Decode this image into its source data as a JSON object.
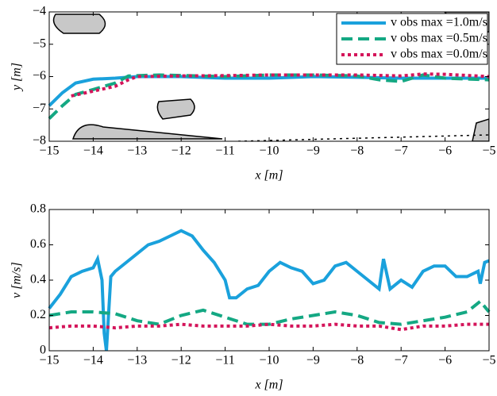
{
  "chart_data": [
    {
      "type": "line",
      "xlabel": "x [m]",
      "ylabel": "y [m]",
      "xlim": [
        -15,
        -5
      ],
      "ylim": [
        -8,
        -4
      ],
      "xticks": [
        {
          "value": -15,
          "label": "−15"
        },
        {
          "value": -14,
          "label": "−14"
        },
        {
          "value": -13,
          "label": "−13"
        },
        {
          "value": -12,
          "label": "−12"
        },
        {
          "value": -11,
          "label": "−11"
        },
        {
          "value": -10,
          "label": "−10"
        },
        {
          "value": -9,
          "label": "−9"
        },
        {
          "value": -8,
          "label": "−8"
        },
        {
          "value": -7,
          "label": "−7"
        },
        {
          "value": -6,
          "label": "−6"
        },
        {
          "value": -5,
          "label": "−5"
        }
      ],
      "yticks": [
        {
          "value": -8,
          "label": "−8"
        },
        {
          "value": -7,
          "label": "−7"
        },
        {
          "value": -6,
          "label": "−6"
        },
        {
          "value": -5,
          "label": "−5"
        },
        {
          "value": -4,
          "label": "−4"
        }
      ],
      "legend": "upper right",
      "series": [
        {
          "name": "v obs max =1.0m/s",
          "color": "#1aa1dc",
          "linestyle": "solid",
          "x": [
            -15,
            -14.7,
            -14.4,
            -14,
            -13.5,
            -13,
            -12,
            -11,
            -10,
            -9,
            -8,
            -7,
            -6,
            -5
          ],
          "values": [
            -6.9,
            -6.5,
            -6.2,
            -6.08,
            -6.05,
            -6.0,
            -6.0,
            -6.05,
            -6.05,
            -6.0,
            -6.02,
            -6.05,
            -6.05,
            -6.05
          ]
        },
        {
          "name": "v obs max =0.5m/s",
          "color": "#14a883",
          "linestyle": "dashed",
          "x": [
            -15,
            -14.7,
            -14.4,
            -14,
            -13.5,
            -13.2,
            -12.5,
            -11,
            -10,
            -9,
            -8,
            -7.5,
            -7,
            -6.5,
            -6,
            -5
          ],
          "values": [
            -7.3,
            -6.9,
            -6.55,
            -6.4,
            -6.2,
            -5.98,
            -5.95,
            -6.0,
            -5.95,
            -5.95,
            -5.98,
            -6.1,
            -6.15,
            -5.95,
            -6.05,
            -6.1
          ]
        },
        {
          "name": "v obs max =0.0m/s",
          "color": "#d4145a",
          "linestyle": "dotted",
          "x": [
            -14.5,
            -14,
            -13.5,
            -13.2,
            -13,
            -12,
            -11,
            -10,
            -9,
            -8,
            -7,
            -6.5,
            -6,
            -5
          ],
          "values": [
            -6.6,
            -6.45,
            -6.3,
            -6.1,
            -6.0,
            -5.98,
            -5.97,
            -5.95,
            -5.95,
            -5.95,
            -5.98,
            -5.92,
            -5.93,
            -6.0
          ]
        }
      ]
    },
    {
      "type": "line",
      "xlabel": "x [m]",
      "ylabel": "v [m/s]",
      "xlim": [
        -15,
        -5
      ],
      "ylim": [
        0,
        0.8
      ],
      "xticks": [
        {
          "value": -15,
          "label": "−15"
        },
        {
          "value": -14,
          "label": "−14"
        },
        {
          "value": -13,
          "label": "−13"
        },
        {
          "value": -12,
          "label": "−12"
        },
        {
          "value": -11,
          "label": "−11"
        },
        {
          "value": -10,
          "label": "−10"
        },
        {
          "value": -9,
          "label": "−9"
        },
        {
          "value": -8,
          "label": "−8"
        },
        {
          "value": -7,
          "label": "−7"
        },
        {
          "value": -6,
          "label": "−6"
        },
        {
          "value": -5,
          "label": "−5"
        }
      ],
      "yticks": [
        0,
        0.2,
        0.4,
        0.6,
        0.8
      ],
      "series": [
        {
          "color": "#1aa1dc",
          "linestyle": "solid",
          "x": [
            -15,
            -14.75,
            -14.5,
            -14.25,
            -14,
            -13.9,
            -13.8,
            -13.75,
            -13.7,
            -13.6,
            -13.5,
            -13.25,
            -13,
            -12.75,
            -12.5,
            -12.25,
            -12,
            -11.75,
            -11.5,
            -11.25,
            -11,
            -10.9,
            -10.75,
            -10.5,
            -10.25,
            -10,
            -9.75,
            -9.5,
            -9.25,
            -9,
            -8.75,
            -8.5,
            -8.25,
            -8,
            -7.75,
            -7.5,
            -7.4,
            -7.25,
            -7,
            -6.75,
            -6.5,
            -6.25,
            -6,
            -5.75,
            -5.5,
            -5.25,
            -5.2,
            -5.1,
            -5
          ],
          "values": [
            0.24,
            0.32,
            0.42,
            0.45,
            0.47,
            0.52,
            0.4,
            0.1,
            0,
            0.42,
            0.45,
            0.5,
            0.55,
            0.6,
            0.62,
            0.65,
            0.68,
            0.65,
            0.57,
            0.5,
            0.4,
            0.3,
            0.3,
            0.35,
            0.37,
            0.45,
            0.5,
            0.47,
            0.45,
            0.38,
            0.4,
            0.48,
            0.5,
            0.45,
            0.4,
            0.35,
            0.52,
            0.35,
            0.4,
            0.36,
            0.45,
            0.48,
            0.48,
            0.42,
            0.42,
            0.45,
            0.38,
            0.5,
            0.51
          ]
        },
        {
          "color": "#14a883",
          "linestyle": "dashed",
          "x": [
            -15,
            -14.5,
            -14,
            -13.5,
            -13,
            -12.5,
            -12,
            -11.5,
            -11,
            -10.5,
            -10,
            -9.5,
            -9,
            -8.5,
            -8,
            -7.5,
            -7,
            -6.5,
            -6,
            -5.5,
            -5.2,
            -5
          ],
          "values": [
            0.2,
            0.22,
            0.22,
            0.21,
            0.17,
            0.15,
            0.2,
            0.23,
            0.19,
            0.15,
            0.15,
            0.18,
            0.2,
            0.22,
            0.2,
            0.16,
            0.15,
            0.17,
            0.19,
            0.22,
            0.28,
            0.22
          ]
        },
        {
          "color": "#d4145a",
          "linestyle": "dotted",
          "x": [
            -15,
            -14.5,
            -14,
            -13.5,
            -13,
            -12.5,
            -12,
            -11.5,
            -11,
            -10.5,
            -10,
            -9.5,
            -9,
            -8.5,
            -8,
            -7.5,
            -7,
            -6.5,
            -6,
            -5.5,
            -5
          ],
          "values": [
            0.13,
            0.14,
            0.14,
            0.13,
            0.14,
            0.14,
            0.15,
            0.14,
            0.14,
            0.14,
            0.15,
            0.14,
            0.14,
            0.15,
            0.14,
            0.14,
            0.12,
            0.14,
            0.14,
            0.15,
            0.15
          ]
        }
      ]
    }
  ]
}
